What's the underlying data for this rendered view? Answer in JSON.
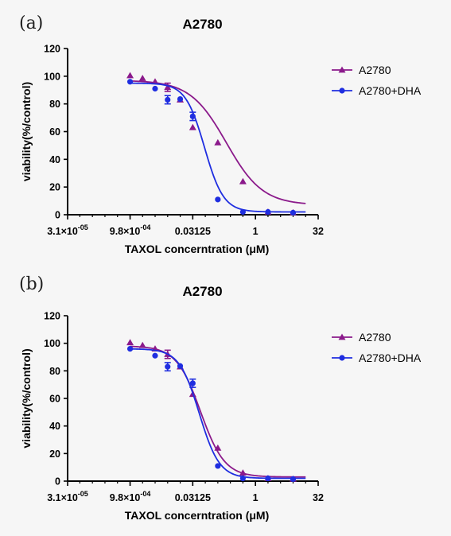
{
  "chart_data": [
    {
      "type": "scatter",
      "panel_label": "(a)",
      "title": "A2780",
      "xlabel": "TAXOL concerntration (μM)",
      "ylabel": "viability(%/control)",
      "x_scale": "log2",
      "xlim": [
        3.1e-05,
        32
      ],
      "ylim": [
        0,
        120
      ],
      "yticks": [
        0,
        20,
        40,
        60,
        80,
        100,
        120
      ],
      "xticks": [
        {
          "value": 3.1e-05,
          "label": "3.1×10",
          "exp": "-05"
        },
        {
          "value": 0.00098,
          "label": "9.8×10",
          "exp": "-04"
        },
        {
          "value": 0.03125,
          "label": "0.03125",
          "exp": ""
        },
        {
          "value": 1,
          "label": "1",
          "exp": ""
        },
        {
          "value": 32,
          "label": "32",
          "exp": ""
        }
      ],
      "legend_position": "top-right",
      "series": [
        {
          "name": "A2780",
          "color": "#8b1a8b",
          "marker": "triangle",
          "points": [
            {
              "x": 0.00098,
              "y": 100.5
            },
            {
              "x": 0.00195,
              "y": 98.5
            },
            {
              "x": 0.0039,
              "y": 96
            },
            {
              "x": 0.0078,
              "y": 92,
              "err": 3
            },
            {
              "x": 0.0156,
              "y": 83
            },
            {
              "x": 0.03125,
              "y": 63
            },
            {
              "x": 0.125,
              "y": 52
            },
            {
              "x": 0.5,
              "y": 24
            },
            {
              "x": 2,
              "y": 2
            },
            {
              "x": 8,
              "y": 1.5
            }
          ],
          "fit": {
            "top": 97,
            "bottom": 7,
            "ic50": 0.2,
            "hill": 1.0
          }
        },
        {
          "name": "A2780+DHA",
          "color": "#1f2ee0",
          "marker": "circle",
          "points": [
            {
              "x": 0.00098,
              "y": 96
            },
            {
              "x": 0.0039,
              "y": 91
            },
            {
              "x": 0.0078,
              "y": 83,
              "err": 3
            },
            {
              "x": 0.0156,
              "y": 83.5
            },
            {
              "x": 0.03125,
              "y": 71,
              "err": 3
            },
            {
              "x": 0.125,
              "y": 11
            },
            {
              "x": 0.5,
              "y": 2
            },
            {
              "x": 2,
              "y": 2
            },
            {
              "x": 8,
              "y": 1.5
            }
          ],
          "fit": {
            "top": 95,
            "bottom": 2,
            "ic50": 0.06,
            "hill": 1.9
          }
        }
      ]
    },
    {
      "type": "scatter",
      "panel_label": "(b)",
      "title": "A2780",
      "xlabel": "TAXOL concerntration (μM)",
      "ylabel": "viability(%/control)",
      "x_scale": "log2",
      "xlim": [
        3.1e-05,
        32
      ],
      "ylim": [
        0,
        120
      ],
      "yticks": [
        0,
        20,
        40,
        60,
        80,
        100,
        120
      ],
      "xticks": [
        {
          "value": 3.1e-05,
          "label": "3.1×10",
          "exp": "-05"
        },
        {
          "value": 0.00098,
          "label": "9.8×10",
          "exp": "-04"
        },
        {
          "value": 0.03125,
          "label": "0.03125",
          "exp": ""
        },
        {
          "value": 1,
          "label": "1",
          "exp": ""
        },
        {
          "value": 32,
          "label": "32",
          "exp": ""
        }
      ],
      "legend_position": "top-right",
      "series": [
        {
          "name": "A2780",
          "color": "#8b1a8b",
          "marker": "triangle",
          "points": [
            {
              "x": 0.00098,
              "y": 100.5
            },
            {
              "x": 0.00195,
              "y": 98.5
            },
            {
              "x": 0.0039,
              "y": 96
            },
            {
              "x": 0.0078,
              "y": 92,
              "err": 3
            },
            {
              "x": 0.0156,
              "y": 83
            },
            {
              "x": 0.03125,
              "y": 63
            },
            {
              "x": 0.125,
              "y": 24
            },
            {
              "x": 0.5,
              "y": 6
            },
            {
              "x": 2,
              "y": 2
            },
            {
              "x": 8,
              "y": 1.5
            }
          ],
          "fit": {
            "top": 98,
            "bottom": 3,
            "ic50": 0.048,
            "hill": 1.5
          }
        },
        {
          "name": "A2780+DHA",
          "color": "#1f2ee0",
          "marker": "circle",
          "points": [
            {
              "x": 0.00098,
              "y": 96
            },
            {
              "x": 0.0039,
              "y": 91
            },
            {
              "x": 0.0078,
              "y": 83,
              "err": 3
            },
            {
              "x": 0.0156,
              "y": 83.5
            },
            {
              "x": 0.03125,
              "y": 71,
              "err": 3
            },
            {
              "x": 0.125,
              "y": 11
            },
            {
              "x": 0.5,
              "y": 2
            },
            {
              "x": 2,
              "y": 2
            },
            {
              "x": 8,
              "y": 1.5
            }
          ],
          "fit": {
            "top": 96,
            "bottom": 2,
            "ic50": 0.045,
            "hill": 1.8
          }
        }
      ]
    }
  ]
}
